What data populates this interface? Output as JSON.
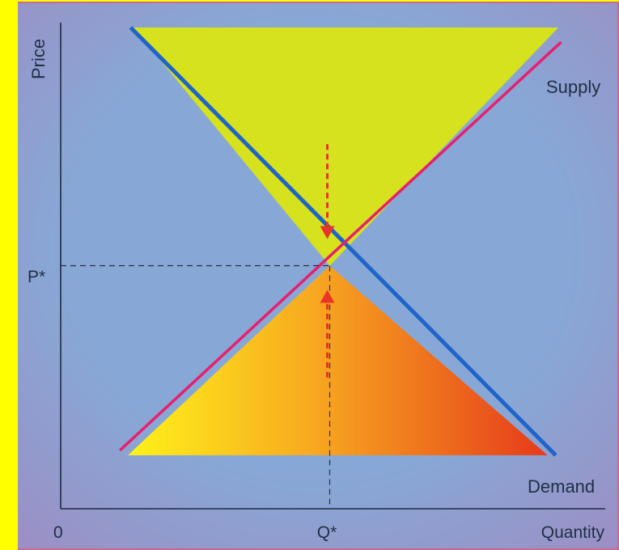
{
  "chart_data": {
    "type": "line",
    "title": "",
    "xlabel": "Quantity",
    "ylabel": "Price",
    "origin_label": "0",
    "equilibrium": {
      "price_label": "P*",
      "quantity_label": "Q*",
      "q": 50,
      "p": 50
    },
    "xlim": [
      0,
      100
    ],
    "ylim": [
      0,
      100
    ],
    "series": [
      {
        "name": "Supply",
        "color": "#e6206e",
        "x": [
          11,
          93
        ],
        "y": [
          12,
          96
        ]
      },
      {
        "name": "Demand",
        "color": "#1f64c8",
        "x": [
          13,
          92
        ],
        "y": [
          99,
          11
        ]
      }
    ],
    "regions": [
      {
        "kind": "surplus",
        "color": "#d5e21d"
      },
      {
        "kind": "shortage",
        "colors": [
          "#fff21a",
          "#f7a720",
          "#e63a1a"
        ]
      }
    ],
    "arrows": [
      {
        "direction": "down",
        "color": "#e83528"
      },
      {
        "direction": "up",
        "color": "#e83528"
      }
    ],
    "colors": {
      "border": "#ffff00",
      "frame": "#c66a8e",
      "plot_background": "#87a8d6",
      "axis": "#1c2a3d"
    }
  }
}
